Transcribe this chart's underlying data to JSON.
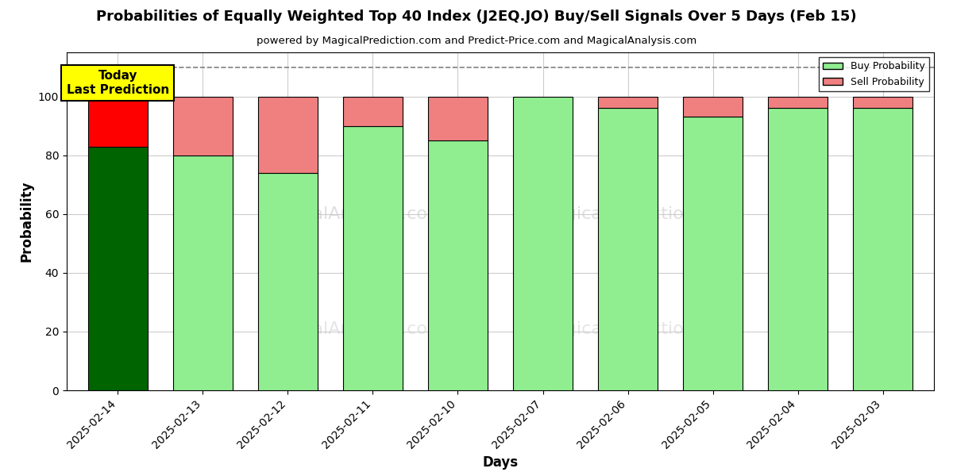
{
  "title": "Probabilities of Equally Weighted Top 40 Index (J2EQ.JO) Buy/Sell Signals Over 5 Days (Feb 15)",
  "subtitle": "powered by MagicalPrediction.com and Predict-Price.com and MagicalAnalysis.com",
  "xlabel": "Days",
  "ylabel": "Probability",
  "days": [
    "2025-02-14",
    "2025-02-13",
    "2025-02-12",
    "2025-02-11",
    "2025-02-10",
    "2025-02-07",
    "2025-02-06",
    "2025-02-05",
    "2025-02-04",
    "2025-02-03"
  ],
  "buy_values": [
    83,
    80,
    74,
    90,
    85,
    100,
    96,
    93,
    96,
    96
  ],
  "sell_values": [
    17,
    20,
    26,
    10,
    15,
    0,
    4,
    7,
    4,
    4
  ],
  "today_buy_color": "#006400",
  "today_sell_color": "#FF0000",
  "buy_color": "#90EE90",
  "sell_color": "#F08080",
  "today_annotation_bg": "#FFFF00",
  "today_annotation_text": "Today\nLast Prediction",
  "ylim": [
    0,
    115
  ],
  "dashed_line_y": 110,
  "legend_buy_label": "Buy Probability",
  "legend_sell_label": "Sell Probability",
  "background_color": "#ffffff",
  "grid_color": "#cccccc",
  "bar_width": 0.7
}
